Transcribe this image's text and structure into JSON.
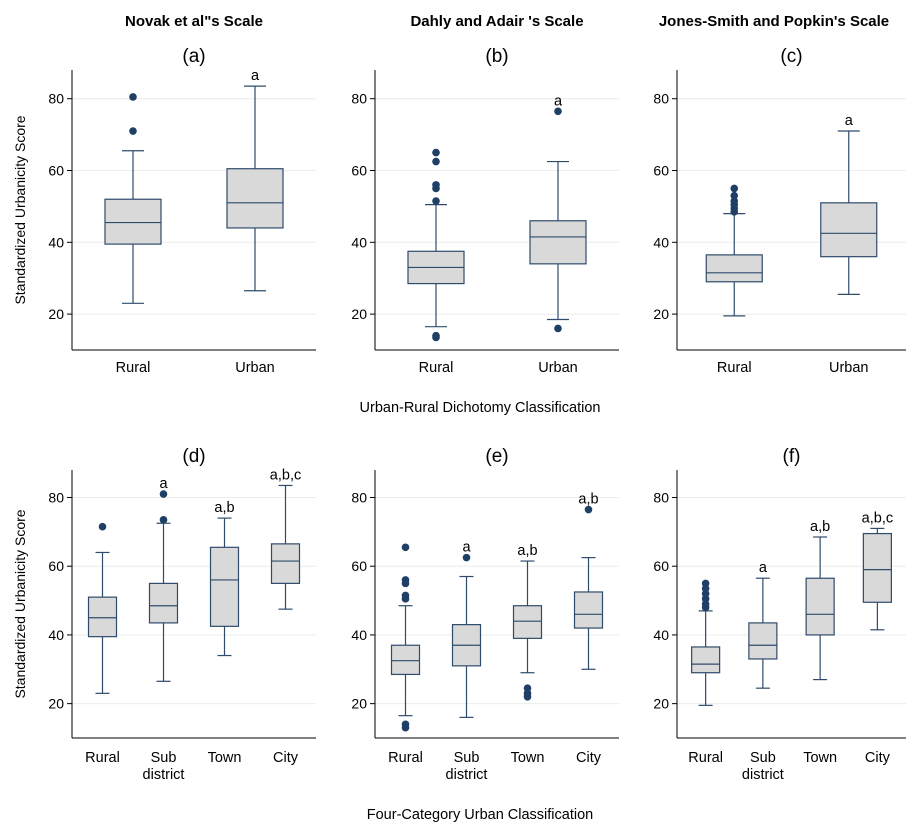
{
  "titles": {
    "col_a": "Novak et al\"s Scale",
    "col_b": "Dahly and Adair 's Scale",
    "col_c": "Jones-Smith and Popkin's Scale"
  },
  "row_labels": {
    "top": "Urban-Rural Dichotomy Classification",
    "bottom": "Four-Category Urban Classification"
  },
  "colors": {
    "box_fill": "#d9d9d9",
    "box_stroke": "#2f4b6b",
    "outlier": "#1f3f66"
  },
  "chart_data": [
    {
      "type": "box",
      "panel": "(a)",
      "ylabel": "Standardized Urbanicity Score",
      "yticks": [
        20,
        40,
        60,
        80
      ],
      "ylim": [
        10,
        88
      ],
      "categories": [
        [
          "Rural"
        ],
        [
          "Urban"
        ]
      ],
      "boxes": [
        {
          "min": 23,
          "q1": 39.5,
          "median": 45.5,
          "q3": 52,
          "max": 65.5,
          "outliers": [
            71,
            80.5
          ],
          "annot": ""
        },
        {
          "min": 26.5,
          "q1": 44,
          "median": 51,
          "q3": 60.5,
          "max": 83.5,
          "outliers": [],
          "annot": "a"
        }
      ]
    },
    {
      "type": "box",
      "panel": "(b)",
      "ylabel": "",
      "yticks": [
        20,
        40,
        60,
        80
      ],
      "ylim": [
        10,
        88
      ],
      "categories": [
        [
          "Rural"
        ],
        [
          "Urban"
        ]
      ],
      "boxes": [
        {
          "min": 16.5,
          "q1": 28.5,
          "median": 33,
          "q3": 37.5,
          "max": 50.5,
          "outliers": [
            13.5,
            14,
            51.5,
            55,
            56,
            62.5,
            65
          ],
          "annot": ""
        },
        {
          "min": 18.5,
          "q1": 34,
          "median": 41.5,
          "q3": 46,
          "max": 62.5,
          "outliers": [
            16,
            76.5
          ],
          "annot": "a"
        }
      ]
    },
    {
      "type": "box",
      "panel": "(c)",
      "ylabel": "",
      "yticks": [
        20,
        40,
        60,
        80
      ],
      "ylim": [
        10,
        88
      ],
      "categories": [
        [
          "Rural"
        ],
        [
          "Urban"
        ]
      ],
      "boxes": [
        {
          "min": 19.5,
          "q1": 29,
          "median": 31.5,
          "q3": 36.5,
          "max": 48,
          "outliers": [
            48.5,
            49.5,
            50.5,
            51.5,
            53,
            55
          ],
          "annot": ""
        },
        {
          "min": 25.5,
          "q1": 36,
          "median": 42.5,
          "q3": 51,
          "max": 71,
          "outliers": [],
          "annot": "a"
        }
      ]
    },
    {
      "type": "box",
      "panel": "(d)",
      "ylabel": "Standardized Urbanicity Score",
      "yticks": [
        20,
        40,
        60,
        80
      ],
      "ylim": [
        10,
        88
      ],
      "categories": [
        [
          "Rural"
        ],
        [
          "Sub",
          "district"
        ],
        [
          "Town"
        ],
        [
          "City"
        ]
      ],
      "boxes": [
        {
          "min": 23,
          "q1": 39.5,
          "median": 45,
          "q3": 51,
          "max": 64,
          "outliers": [
            71.5
          ],
          "annot": ""
        },
        {
          "min": 26.5,
          "q1": 43.5,
          "median": 48.5,
          "q3": 55,
          "max": 72.5,
          "outliers": [
            73.5,
            81
          ],
          "annot": "a"
        },
        {
          "min": 34,
          "q1": 42.5,
          "median": 56,
          "q3": 65.5,
          "max": 74,
          "outliers": [],
          "annot": "a,b"
        },
        {
          "min": 47.5,
          "q1": 55,
          "median": 61.5,
          "q3": 66.5,
          "max": 83.5,
          "outliers": [],
          "annot": "a,b,c"
        }
      ]
    },
    {
      "type": "box",
      "panel": "(e)",
      "ylabel": "",
      "yticks": [
        20,
        40,
        60,
        80
      ],
      "ylim": [
        10,
        88
      ],
      "categories": [
        [
          "Rural"
        ],
        [
          "Sub",
          "district"
        ],
        [
          "Town"
        ],
        [
          "City"
        ]
      ],
      "boxes": [
        {
          "min": 16.5,
          "q1": 28.5,
          "median": 32.5,
          "q3": 37,
          "max": 48.5,
          "outliers": [
            13,
            14,
            50.5,
            51.5,
            55,
            56,
            65.5
          ],
          "annot": ""
        },
        {
          "min": 16,
          "q1": 31,
          "median": 37,
          "q3": 43,
          "max": 57,
          "outliers": [
            62.5
          ],
          "annot": "a"
        },
        {
          "min": 29,
          "q1": 39,
          "median": 44,
          "q3": 48.5,
          "max": 61.5,
          "outliers": [
            22,
            23,
            24.5
          ],
          "annot": "a,b"
        },
        {
          "min": 30,
          "q1": 42,
          "median": 46,
          "q3": 52.5,
          "max": 62.5,
          "outliers": [
            76.5
          ],
          "annot": "a,b"
        }
      ]
    },
    {
      "type": "box",
      "panel": "(f)",
      "ylabel": "",
      "yticks": [
        20,
        40,
        60,
        80
      ],
      "ylim": [
        10,
        88
      ],
      "categories": [
        [
          "Rural"
        ],
        [
          "Sub",
          "district"
        ],
        [
          "Town"
        ],
        [
          "City"
        ]
      ],
      "boxes": [
        {
          "min": 19.5,
          "q1": 29,
          "median": 31.5,
          "q3": 36.5,
          "max": 47,
          "outliers": [
            48,
            49,
            50.5,
            52,
            53.5,
            55
          ],
          "annot": ""
        },
        {
          "min": 24.5,
          "q1": 33,
          "median": 37,
          "q3": 43.5,
          "max": 56.5,
          "outliers": [],
          "annot": "a"
        },
        {
          "min": 27,
          "q1": 40,
          "median": 46,
          "q3": 56.5,
          "max": 68.5,
          "outliers": [],
          "annot": "a,b"
        },
        {
          "min": 41.5,
          "q1": 49.5,
          "median": 59,
          "q3": 69.5,
          "max": 71,
          "outliers": [],
          "annot": "a,b,c"
        }
      ]
    }
  ]
}
